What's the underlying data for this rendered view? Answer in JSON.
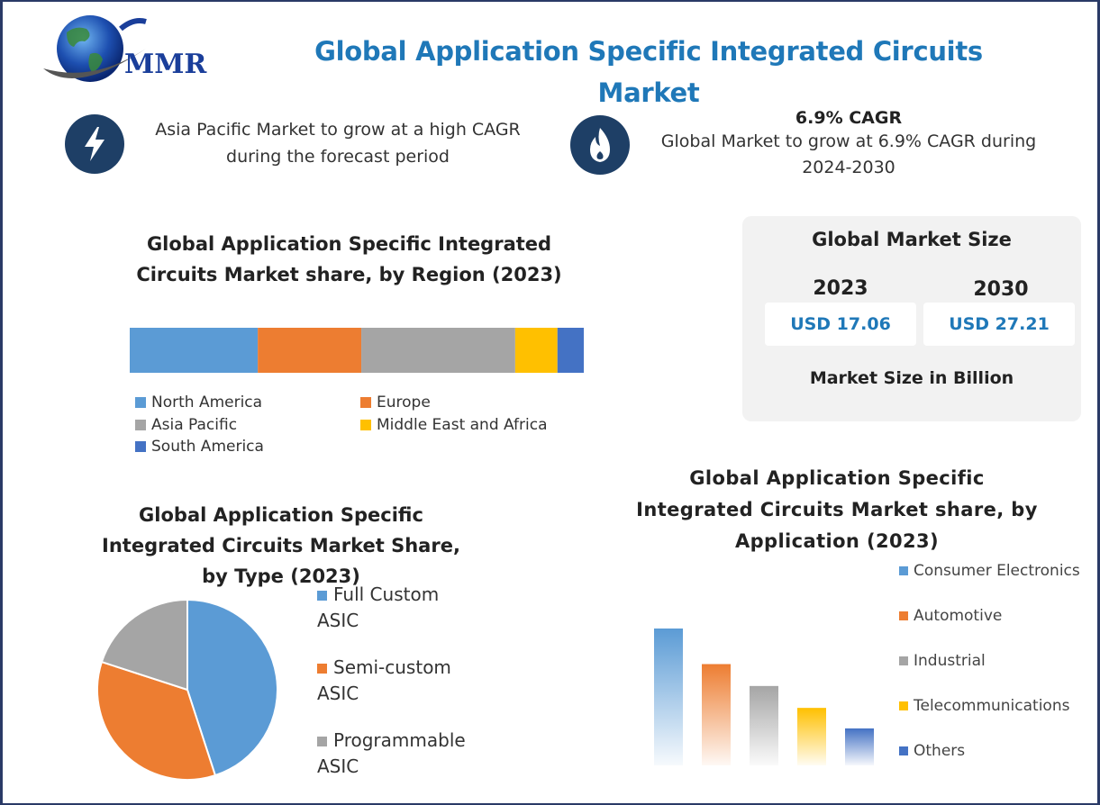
{
  "header": {
    "title": "Global Application Specific Integrated Circuits Market",
    "logo_text": "MMR"
  },
  "highlights": {
    "left": {
      "icon": "lightning-icon",
      "text": "Asia Pacific Market to grow at a high CAGR during the forecast period"
    },
    "right": {
      "icon": "flame-icon",
      "bold": "6.9% CAGR",
      "text": "Global Market to grow at 6.9% CAGR during 2024-2030"
    }
  },
  "market_size": {
    "title": "Global Market Size",
    "year1": "2023",
    "value1": "USD 17.06",
    "year2": "2030",
    "value2": "USD 27.21",
    "footer": "Market Size in Billion"
  },
  "colors": {
    "blue": "#5b9bd5",
    "orange": "#ed7d31",
    "gray": "#a5a5a5",
    "yellow": "#ffc000",
    "darkblue": "#4472c4",
    "accent": "#1f78b8"
  },
  "chart_data": [
    {
      "type": "bar",
      "stacked": true,
      "orientation": "horizontal",
      "title": "Global Application Specific Integrated Circuits Market share, by Region (2023)",
      "categories": [
        "2023"
      ],
      "series": [
        {
          "name": "North America",
          "values": [
            28.2
          ]
        },
        {
          "name": "Europe",
          "values": [
            22.8
          ]
        },
        {
          "name": "Asia Pacific",
          "values": [
            33.9
          ]
        },
        {
          "name": "Middle East and Africa",
          "values": [
            9.3
          ]
        },
        {
          "name": "South America",
          "values": [
            5.8
          ]
        }
      ],
      "xlim": [
        0,
        100
      ],
      "legend": "bottom"
    },
    {
      "type": "pie",
      "title": "Global Application Specific Integrated Circuits Market Share, by Type (2023)",
      "labels": [
        "Full Custom ASIC",
        "Semi-custom ASIC",
        "Programmable ASIC"
      ],
      "values": [
        45,
        35,
        20
      ],
      "legend": "right"
    },
    {
      "type": "bar",
      "title": "Global Application Specific Integrated Circuits Market share, by Application (2023)",
      "categories": [
        "Consumer Electronics",
        "Automotive",
        "Industrial",
        "Telecommunications",
        "Others"
      ],
      "values": [
        100,
        74,
        58,
        42,
        27
      ],
      "ylim": [
        0,
        100
      ],
      "legend": "right"
    }
  ]
}
